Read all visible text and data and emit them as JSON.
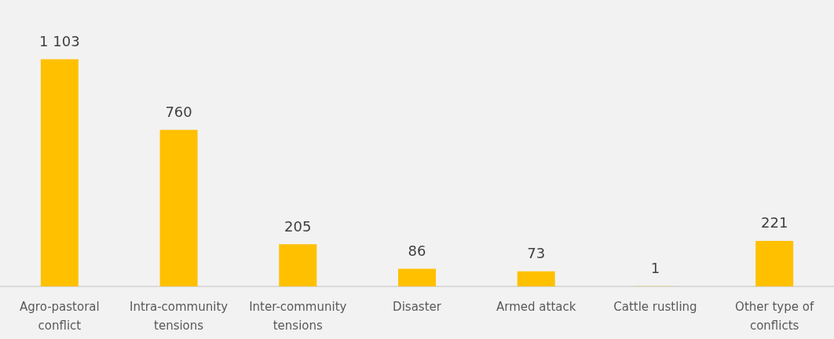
{
  "chart_data": {
    "type": "bar",
    "categories": [
      "Agro-pastoral conflict",
      "Intra-community tensions",
      "Inter-community tensions",
      "Disaster",
      "Armed attack",
      "Cattle rustling",
      "Other type of conflicts"
    ],
    "values": [
      1103,
      760,
      205,
      86,
      73,
      1,
      221
    ],
    "value_labels": [
      "1 103",
      "760",
      "205",
      "86",
      "73",
      "1",
      "221"
    ],
    "color": "#ffc000"
  }
}
